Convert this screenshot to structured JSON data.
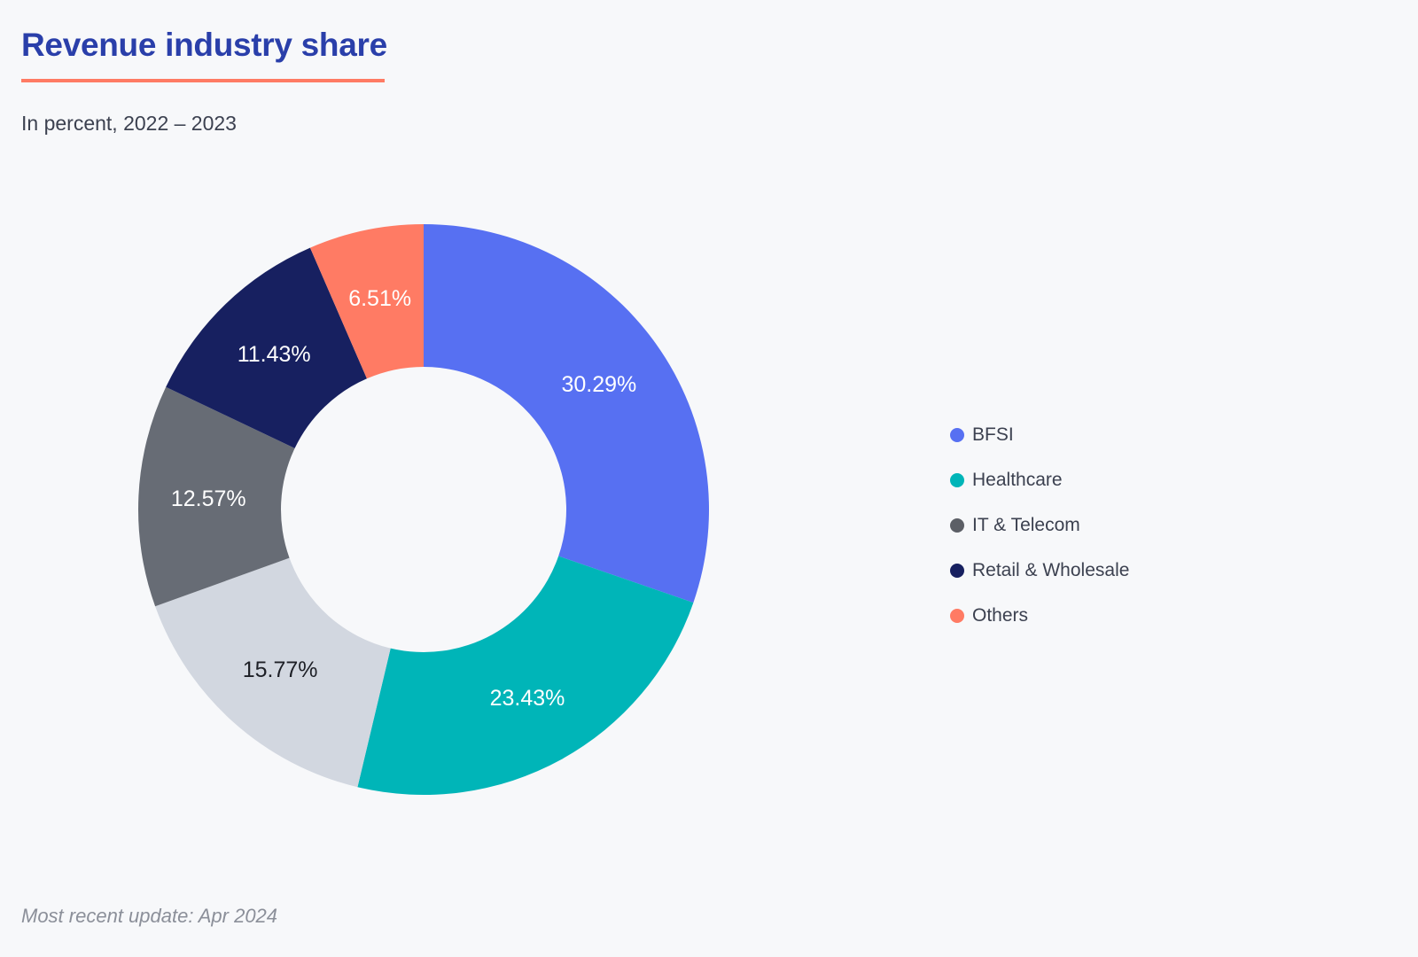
{
  "header": {
    "title": "Revenue industry share",
    "subtitle": "In percent, 2022 – 2023"
  },
  "footer": {
    "update_note": "Most recent update: Apr 2024"
  },
  "colors": {
    "title": "#2a3faa",
    "underline": "#ff7b64",
    "background": "#f7f8fa"
  },
  "chart_data": {
    "type": "pie",
    "style": "donut",
    "start_angle_degrees": 0,
    "direction": "clockwise",
    "legend_position": "right",
    "slices": [
      {
        "label": "BFSI",
        "value": 30.29,
        "value_label": "30.29%",
        "color": "#5770f2",
        "label_color": "#ffffff",
        "in_legend": true
      },
      {
        "label": "Healthcare",
        "value": 23.43,
        "value_label": "23.43%",
        "color": "#00b5b8",
        "label_color": "#ffffff",
        "in_legend": true
      },
      {
        "label": "",
        "value": 15.77,
        "value_label": "15.77%",
        "color": "#d2d7e0",
        "label_color": "#1d1f26",
        "in_legend": false
      },
      {
        "label": "IT & Telecom",
        "value": 12.57,
        "value_label": "12.57%",
        "color": "#676c75",
        "label_color": "#ffffff",
        "in_legend": true,
        "legend_color": "#5c5f66"
      },
      {
        "label": "Retail & Wholesale",
        "value": 11.43,
        "value_label": "11.43%",
        "color": "#172060",
        "label_color": "#ffffff",
        "in_legend": true
      },
      {
        "label": "Others",
        "value": 6.51,
        "value_label": "6.51%",
        "color": "#ff7b64",
        "label_color": "#ffffff",
        "in_legend": true
      }
    ]
  }
}
